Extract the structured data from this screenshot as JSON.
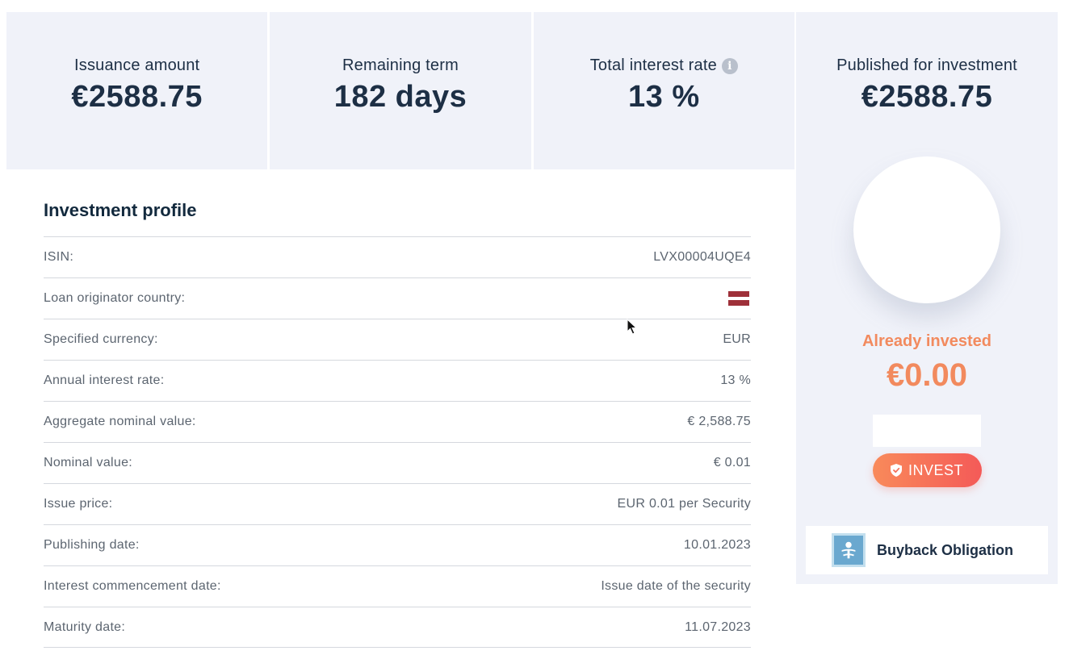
{
  "stats": [
    {
      "label": "Issuance amount",
      "value": "€2588.75"
    },
    {
      "label": "Remaining term",
      "value": "182 days"
    },
    {
      "label": "Total interest rate",
      "value": "13 %",
      "info_icon": "info-icon"
    }
  ],
  "side": {
    "label": "Published for investment",
    "value": "€2588.75",
    "invested_label": "Already invested",
    "invested_value": "€0.00",
    "amount_input_value": "",
    "invest_label": "INVEST",
    "invest_icon": "shield-check-icon",
    "buyback_label": "Buyback Obligation",
    "buyback_icon": "buyback-obligation-icon"
  },
  "profile": {
    "title": "Investment profile",
    "rows": [
      {
        "label": "ISIN:",
        "value": "LVX00004UQE4"
      },
      {
        "label": "Loan originator country:",
        "value": "",
        "flag": "latvia-flag-icon"
      },
      {
        "label": "Specified currency:",
        "value": "EUR"
      },
      {
        "label": "Annual interest rate:",
        "value": "13 %"
      },
      {
        "label": "Aggregate nominal value:",
        "value": "€ 2,588.75"
      },
      {
        "label": "Nominal value:",
        "value": "€ 0.01"
      },
      {
        "label": "Issue price:",
        "value": "EUR 0.01 per Security"
      },
      {
        "label": "Publishing date:",
        "value": "10.01.2023"
      },
      {
        "label": "Interest commencement date:",
        "value": "Issue date of the security"
      },
      {
        "label": "Maturity date:",
        "value": "11.07.2023"
      }
    ]
  },
  "colors": {
    "panel_bg": "#f0f2f9",
    "text_dark": "#1d2f45",
    "accent_orange": "#f28a5e",
    "invest_gradient_start": "#f98a5a",
    "invest_gradient_end": "#f45a58",
    "latvia_red": "#9e3039"
  }
}
